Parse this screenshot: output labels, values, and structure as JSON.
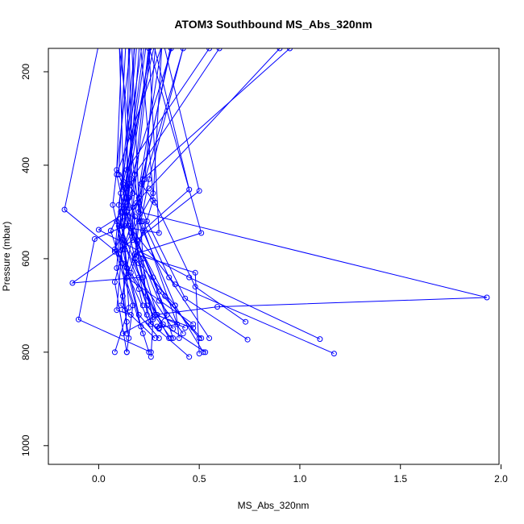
{
  "chart_data": {
    "type": "line",
    "title": "ATOM3 Southbound MS_Abs_320nm",
    "xlabel": "MS_Abs_320nm",
    "ylabel": "Pressure (mbar)",
    "xlim": [
      -0.25,
      1.99
    ],
    "ylim": [
      1040,
      150
    ],
    "y_reversed": true,
    "x_ticks": [
      0.0,
      0.5,
      1.0,
      1.5,
      2.0
    ],
    "x_tick_labels": [
      "0.0",
      "0.5",
      "1.0",
      "1.5",
      "2.0"
    ],
    "y_ticks": [
      200,
      400,
      600,
      800,
      1000
    ],
    "y_tick_labels": [
      "200",
      "400",
      "600",
      "800",
      "1000"
    ],
    "grid": false,
    "legend": "none",
    "color": "#0000ff",
    "series": [
      {
        "x": [
          0.23,
          0.1,
          0.13,
          0.15,
          0.08
        ],
        "y": [
          100,
          485,
          580,
          705,
          800
        ]
      },
      {
        "x": [
          0.27,
          0.17,
          0.2,
          0.27,
          0.26
        ],
        "y": [
          100,
          490,
          610,
          730,
          810
        ]
      },
      {
        "x": [
          0.3,
          0.11,
          0.14,
          0.21,
          0.25
        ],
        "y": [
          100,
          460,
          620,
          745,
          800
        ]
      },
      {
        "x": [
          0.4,
          0.16,
          0.12,
          0.29,
          0.35
        ],
        "y": [
          100,
          430,
          560,
          720,
          770
        ]
      },
      {
        "x": [
          0.35,
          0.09,
          0.18,
          0.38,
          0.52
        ],
        "y": [
          100,
          420,
          600,
          700,
          800
        ]
      },
      {
        "x": [
          0.2,
          0.12,
          0.15,
          0.33,
          0.5
        ],
        "y": [
          100,
          440,
          530,
          680,
          770
        ]
      },
      {
        "x": [
          0.18,
          0.15,
          0.1,
          0.25,
          0.45
        ],
        "y": [
          100,
          470,
          590,
          735,
          810
        ]
      },
      {
        "x": [
          0.24,
          0.13,
          0.22,
          0.27,
          0.12
        ],
        "y": [
          100,
          450,
          640,
          725,
          760
        ]
      },
      {
        "x": [
          0.33,
          0.19,
          0.08,
          0.17,
          0.14
        ],
        "y": [
          100,
          480,
          580,
          700,
          800
        ]
      },
      {
        "x": [
          0.28,
          0.11,
          0.09,
          0.13,
          0.15
        ],
        "y": [
          100,
          500,
          620,
          710,
          770
        ]
      },
      {
        "x": [
          0.55,
          0.14,
          0.16,
          0.3,
          0.42
        ],
        "y": [
          150,
          410,
          545,
          690,
          760
        ]
      },
      {
        "x": [
          0.95,
          0.22,
          0.2,
          0.38,
          0.4
        ],
        "y": [
          150,
          430,
          520,
          700,
          770
        ]
      },
      {
        "x": [
          0.25,
          0.12,
          0.22,
          0.35,
          0.55
        ],
        "y": [
          100,
          500,
          520,
          640,
          770
        ]
      },
      {
        "x": [
          0.38,
          0.2,
          0.24,
          0.43,
          0.74
        ],
        "y": [
          100,
          470,
          520,
          685,
          773
        ]
      },
      {
        "x": [
          0.26,
          0.17,
          0.1,
          0.2,
          0.3
        ],
        "y": [
          100,
          460,
          530,
          720,
          770
        ]
      },
      {
        "x": [
          0.15,
          0.14,
          0.12,
          0.09,
          0.16
        ],
        "y": [
          100,
          450,
          560,
          710,
          720
        ]
      },
      {
        "x": [
          0.9,
          0.25,
          0.13,
          0.27,
          0.37
        ],
        "y": [
          150,
          450,
          510,
          640,
          770
        ]
      },
      {
        "x": [
          0.36,
          0.21,
          0.28,
          0.48,
          0.73
        ],
        "y": [
          150,
          440,
          480,
          660,
          735
        ]
      },
      {
        "x": [
          0.42,
          0.23,
          0.13,
          0.24,
          0.36
        ],
        "y": [
          150,
          430,
          570,
          700,
          770
        ]
      },
      {
        "x": [
          0.16,
          0.2,
          0.18,
          0.26,
          0.3
        ],
        "y": [
          100,
          480,
          600,
          740,
          750
        ]
      },
      {
        "x": [
          0.02,
          -0.17,
          0.1,
          0.2,
          0.22
        ],
        "y": [
          100,
          495,
          590,
          665,
          700
        ]
      },
      {
        "x": [
          0.09,
          0.2,
          1.93,
          0.59,
          0.28
        ],
        "y": [
          100,
          500,
          683,
          703,
          720
        ]
      },
      {
        "x": [
          0.15,
          0.17,
          -0.13,
          0.2,
          0.37
        ],
        "y": [
          100,
          560,
          652,
          640,
          750
        ]
      },
      {
        "x": [
          0.1,
          0.13,
          -0.02,
          -0.1,
          0.26
        ],
        "y": [
          100,
          530,
          558,
          730,
          800
        ]
      },
      {
        "x": [
          0.21,
          0.14,
          0.0,
          0.45,
          1.1
        ],
        "y": [
          100,
          500,
          538,
          640,
          772
        ]
      },
      {
        "x": [
          0.25,
          0.3,
          0.16,
          0.38,
          1.17
        ],
        "y": [
          150,
          545,
          535,
          655,
          803
        ]
      },
      {
        "x": [
          0.25,
          0.45,
          0.22,
          0.14,
          0.47
        ],
        "y": [
          100,
          452,
          540,
          640,
          740
        ]
      },
      {
        "x": [
          0.3,
          0.5,
          0.19,
          0.3,
          0.51
        ],
        "y": [
          100,
          455,
          560,
          670,
          770
        ]
      },
      {
        "x": [
          0.22,
          0.51,
          0.18,
          0.48,
          0.5
        ],
        "y": [
          100,
          545,
          590,
          630,
          803
        ]
      },
      {
        "x": [
          0.17,
          0.07,
          0.14,
          0.11,
          0.28
        ],
        "y": [
          100,
          485,
          620,
          700,
          770
        ]
      },
      {
        "x": [
          0.19,
          0.08,
          0.13,
          0.06,
          0.22
        ],
        "y": [
          100,
          585,
          480,
          540,
          760
        ]
      },
      {
        "x": [
          0.32,
          0.27,
          0.16,
          0.32,
          0.53
        ],
        "y": [
          100,
          475,
          630,
          740,
          800
        ]
      },
      {
        "x": [
          0.14,
          0.1,
          0.18,
          0.12,
          0.14
        ],
        "y": [
          100,
          420,
          510,
          680,
          735
        ]
      },
      {
        "x": [
          0.12,
          0.09,
          0.2,
          0.22,
          0.24
        ],
        "y": [
          100,
          410,
          470,
          600,
          720
        ]
      },
      {
        "x": [
          0.29,
          0.23,
          0.19,
          0.34,
          0.29
        ],
        "y": [
          100,
          430,
          560,
          720,
          745
        ]
      },
      {
        "x": [
          0.11,
          0.15,
          0.09,
          0.12,
          0.14
        ],
        "y": [
          100,
          440,
          520,
          610,
          760
        ]
      },
      {
        "x": [
          0.6,
          0.18,
          0.14,
          0.29,
          0.43
        ],
        "y": [
          150,
          420,
          500,
          720,
          748
        ]
      },
      {
        "x": [
          0.2,
          0.27,
          0.12,
          0.08,
          0.14
        ],
        "y": [
          100,
          460,
          580,
          650,
          800
        ]
      },
      {
        "x": [
          0.27,
          0.14,
          0.11,
          0.28,
          0.47
        ],
        "y": [
          100,
          470,
          530,
          720,
          748
        ]
      },
      {
        "x": [
          0.45,
          0.25,
          0.21,
          0.39,
          0.3
        ],
        "y": [
          100,
          430,
          520,
          740,
          748
        ]
      }
    ]
  }
}
